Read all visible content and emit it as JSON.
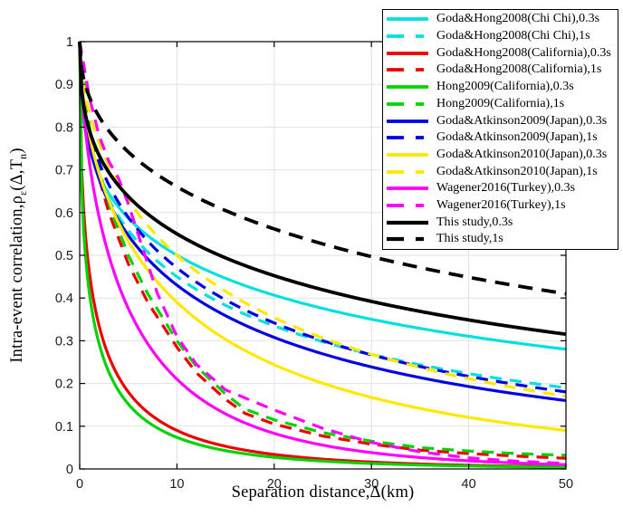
{
  "figure": {
    "xlabel": "Separation distance,Δ(km)",
    "ylabel": {
      "pre": "Intra-event correlation,ρ",
      "sub1": "ε",
      "mid": "(Δ,T",
      "sub2": "n",
      "post": ")"
    },
    "x_ticks": [
      "0",
      "10",
      "20",
      "30",
      "40",
      "50"
    ],
    "y_ticks": [
      "0",
      "0.1",
      "0.2",
      "0.3",
      "0.4",
      "0.5",
      "0.6",
      "0.7",
      "0.8",
      "0.9",
      "1"
    ],
    "grid_color": "#e2e2e2",
    "axis_color": "#000000"
  },
  "chart_data": {
    "type": "line",
    "xlabel": "Separation distance,Δ(km)",
    "ylabel": "Intra-event correlation,ρ_ε(Δ,T_n)",
    "xlim": [
      0,
      50
    ],
    "ylim": [
      0,
      1
    ],
    "grid": true,
    "legend_position": "top-right",
    "x_samples": [
      0,
      5,
      10,
      20,
      30,
      40,
      50
    ],
    "series": [
      {
        "name": "Goda&Hong2008(Chi Chi),0.3s",
        "color": "#00e0e0",
        "style": "solid",
        "model": {
          "a": 0.29,
          "b": 0.378
        },
        "values": [
          1,
          0.59,
          0.5,
          0.41,
          0.35,
          0.31,
          0.28
        ]
      },
      {
        "name": "Goda&Hong2008(Chi Chi),1s",
        "color": "#00e0e0",
        "style": "dashed",
        "model": {
          "a": 0.28,
          "b": 0.455
        },
        "values": [
          1,
          0.56,
          0.45,
          0.34,
          0.27,
          0.22,
          0.19
        ]
      },
      {
        "name": "Goda&Hong2008(California),0.3s",
        "color": "#ee0000",
        "style": "solid",
        "model": {
          "a": 0.779,
          "b": 0.49
        },
        "values": [
          1,
          0.18,
          0.09,
          0.034,
          0.016,
          0.009,
          0.005
        ]
      },
      {
        "name": "Goda&Hong2008(California),1s",
        "color": "#ee0000",
        "style": "dashed",
        "pts": [
          [
            0,
            1
          ],
          [
            1,
            0.78
          ],
          [
            2,
            0.68
          ],
          [
            3,
            0.6
          ],
          [
            4,
            0.54
          ],
          [
            5,
            0.48
          ],
          [
            7,
            0.39
          ],
          [
            10,
            0.285
          ],
          [
            12,
            0.225
          ],
          [
            15,
            0.163
          ],
          [
            17,
            0.13
          ],
          [
            20,
            0.105
          ],
          [
            25,
            0.077
          ],
          [
            30,
            0.058
          ],
          [
            35,
            0.044
          ],
          [
            40,
            0.036
          ],
          [
            45,
            0.03
          ],
          [
            50,
            0.025
          ]
        ],
        "values": [
          1,
          0.48,
          0.285,
          0.105,
          0.058,
          0.036,
          0.025
        ]
      },
      {
        "name": "Hong2009(California),0.3s",
        "color": "#00d400",
        "style": "solid",
        "model": {
          "a": 0.889,
          "b": 0.467
        },
        "values": [
          1,
          0.15,
          0.074,
          0.027,
          0.013,
          0.007,
          0.004
        ]
      },
      {
        "name": "Hong2009(California),1s",
        "color": "#00d400",
        "style": "dashed",
        "pts": [
          [
            0,
            1
          ],
          [
            1,
            0.8
          ],
          [
            2,
            0.7
          ],
          [
            3,
            0.62
          ],
          [
            4,
            0.56
          ],
          [
            5,
            0.5
          ],
          [
            7,
            0.41
          ],
          [
            10,
            0.3
          ],
          [
            12,
            0.24
          ],
          [
            15,
            0.175
          ],
          [
            17,
            0.14
          ],
          [
            20,
            0.115
          ],
          [
            25,
            0.085
          ],
          [
            30,
            0.065
          ],
          [
            35,
            0.05
          ],
          [
            40,
            0.042
          ],
          [
            45,
            0.036
          ],
          [
            50,
            0.032
          ]
        ],
        "values": [
          1,
          0.5,
          0.3,
          0.115,
          0.065,
          0.042,
          0.032
        ]
      },
      {
        "name": "Goda&Atkinson2009(Japan),0.3s",
        "color": "#0000e6",
        "style": "solid",
        "model": {
          "a": 0.278,
          "b": 0.482
        },
        "values": [
          1,
          0.55,
          0.43,
          0.31,
          0.24,
          0.19,
          0.16
        ]
      },
      {
        "name": "Goda&Atkinson2009(Japan),1s",
        "color": "#0000e6",
        "style": "dashed",
        "model": {
          "a": 0.233,
          "b": 0.51
        },
        "values": [
          1,
          0.59,
          0.47,
          0.34,
          0.27,
          0.22,
          0.18
        ]
      },
      {
        "name": "Goda&Atkinson2010(Japan),0.3s",
        "color": "#ffe800",
        "style": "solid",
        "model": {
          "a": 0.246,
          "b": 0.583
        },
        "values": [
          1,
          0.53,
          0.39,
          0.24,
          0.17,
          0.12,
          0.09
        ]
      },
      {
        "name": "Goda&Atkinson2010(Japan),1s",
        "color": "#ffe800",
        "style": "dashed",
        "model": {
          "a": 0.181,
          "b": 0.583
        },
        "values": [
          1,
          0.63,
          0.5,
          0.35,
          0.27,
          0.21,
          0.17
        ]
      },
      {
        "name": "Wagener2016(Turkey),0.3s",
        "color": "#ff00ff",
        "style": "solid",
        "model": {
          "a": 0.332,
          "b": 0.672
        },
        "values": [
          1,
          0.38,
          0.21,
          0.083,
          0.038,
          0.019,
          0.01
        ]
      },
      {
        "name": "Wagener2016(Turkey),1s",
        "color": "#ff00ff",
        "style": "dashed",
        "pts": [
          [
            0,
            1
          ],
          [
            1,
            0.87
          ],
          [
            2,
            0.78
          ],
          [
            3,
            0.72
          ],
          [
            4,
            0.68
          ],
          [
            5,
            0.62
          ],
          [
            6,
            0.55
          ],
          [
            7,
            0.48
          ],
          [
            8,
            0.41
          ],
          [
            9,
            0.36
          ],
          [
            10,
            0.31
          ],
          [
            12,
            0.245
          ],
          [
            15,
            0.185
          ],
          [
            20,
            0.138
          ],
          [
            25,
            0.095
          ],
          [
            30,
            0.062
          ],
          [
            35,
            0.04
          ],
          [
            40,
            0.026
          ],
          [
            45,
            0.018
          ],
          [
            50,
            0.013
          ]
        ],
        "values": [
          1,
          0.62,
          0.31,
          0.138,
          0.062,
          0.026,
          0.013
        ]
      },
      {
        "name": "This study,0.3s",
        "color": "#000000",
        "style": "solid",
        "model": {
          "a": 0.233,
          "b": 0.409
        },
        "values": [
          1,
          0.64,
          0.55,
          0.45,
          0.39,
          0.35,
          0.32
        ]
      },
      {
        "name": "This study,1s",
        "color": "#000000",
        "style": "dashed",
        "model": {
          "a": 0.139,
          "b": 0.475
        },
        "values": [
          1,
          0.74,
          0.66,
          0.56,
          0.5,
          0.45,
          0.41
        ]
      }
    ]
  }
}
